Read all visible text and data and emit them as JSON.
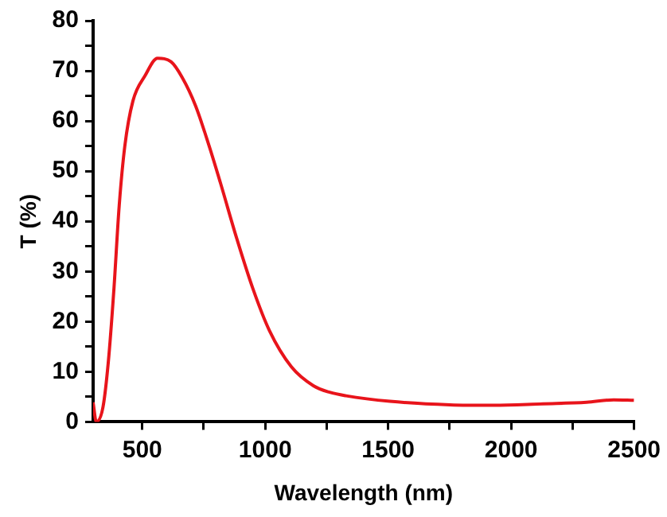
{
  "chart_data": {
    "type": "line",
    "xlabel": "Wavelength (nm)",
    "ylabel": "T (%)",
    "series": [
      {
        "color": "#e8141b",
        "x": [
          300,
          313,
          340,
          362,
          384,
          406,
          429,
          462,
          511,
          562,
          617,
          662,
          717,
          772,
          817,
          884,
          951,
          1017,
          1106,
          1196,
          1262,
          1329,
          1507,
          1751,
          1929,
          2129,
          2307,
          2417,
          2500
        ],
        "values": [
          3.9,
          0,
          2.9,
          12,
          26,
          43,
          55,
          64,
          69,
          72.5,
          71.8,
          68.7,
          63,
          55,
          47.8,
          36.6,
          26.4,
          18.2,
          11,
          7.2,
          5.9,
          5.2,
          4.1,
          3.4,
          3.3,
          3.6,
          3.9,
          4.4,
          4.3
        ]
      }
    ],
    "xlim": [
      300,
      2500
    ],
    "xticks": [
      {
        "value": 500,
        "label": "500"
      },
      {
        "value": 750,
        "label": null
      },
      {
        "value": 1000,
        "label": "1000"
      },
      {
        "value": 1250,
        "label": null
      },
      1500,
      {
        "value": 1750,
        "label": null
      },
      2000,
      {
        "value": 2250,
        "label": null
      },
      2500
    ],
    "ylim": [
      0,
      80
    ],
    "yticks": [
      0,
      {
        "value": 5,
        "label": null
      },
      10,
      {
        "value": 15,
        "label": null
      },
      20,
      {
        "value": 25,
        "label": null
      },
      30,
      {
        "value": 35,
        "label": null
      },
      40,
      {
        "value": 45,
        "label": null
      },
      50,
      {
        "value": 55,
        "label": null
      },
      60,
      {
        "value": 65,
        "label": null
      },
      70,
      {
        "value": 75,
        "label": null
      },
      80
    ],
    "grid": false,
    "legend": false,
    "marker": "none",
    "line_style": "solid"
  }
}
